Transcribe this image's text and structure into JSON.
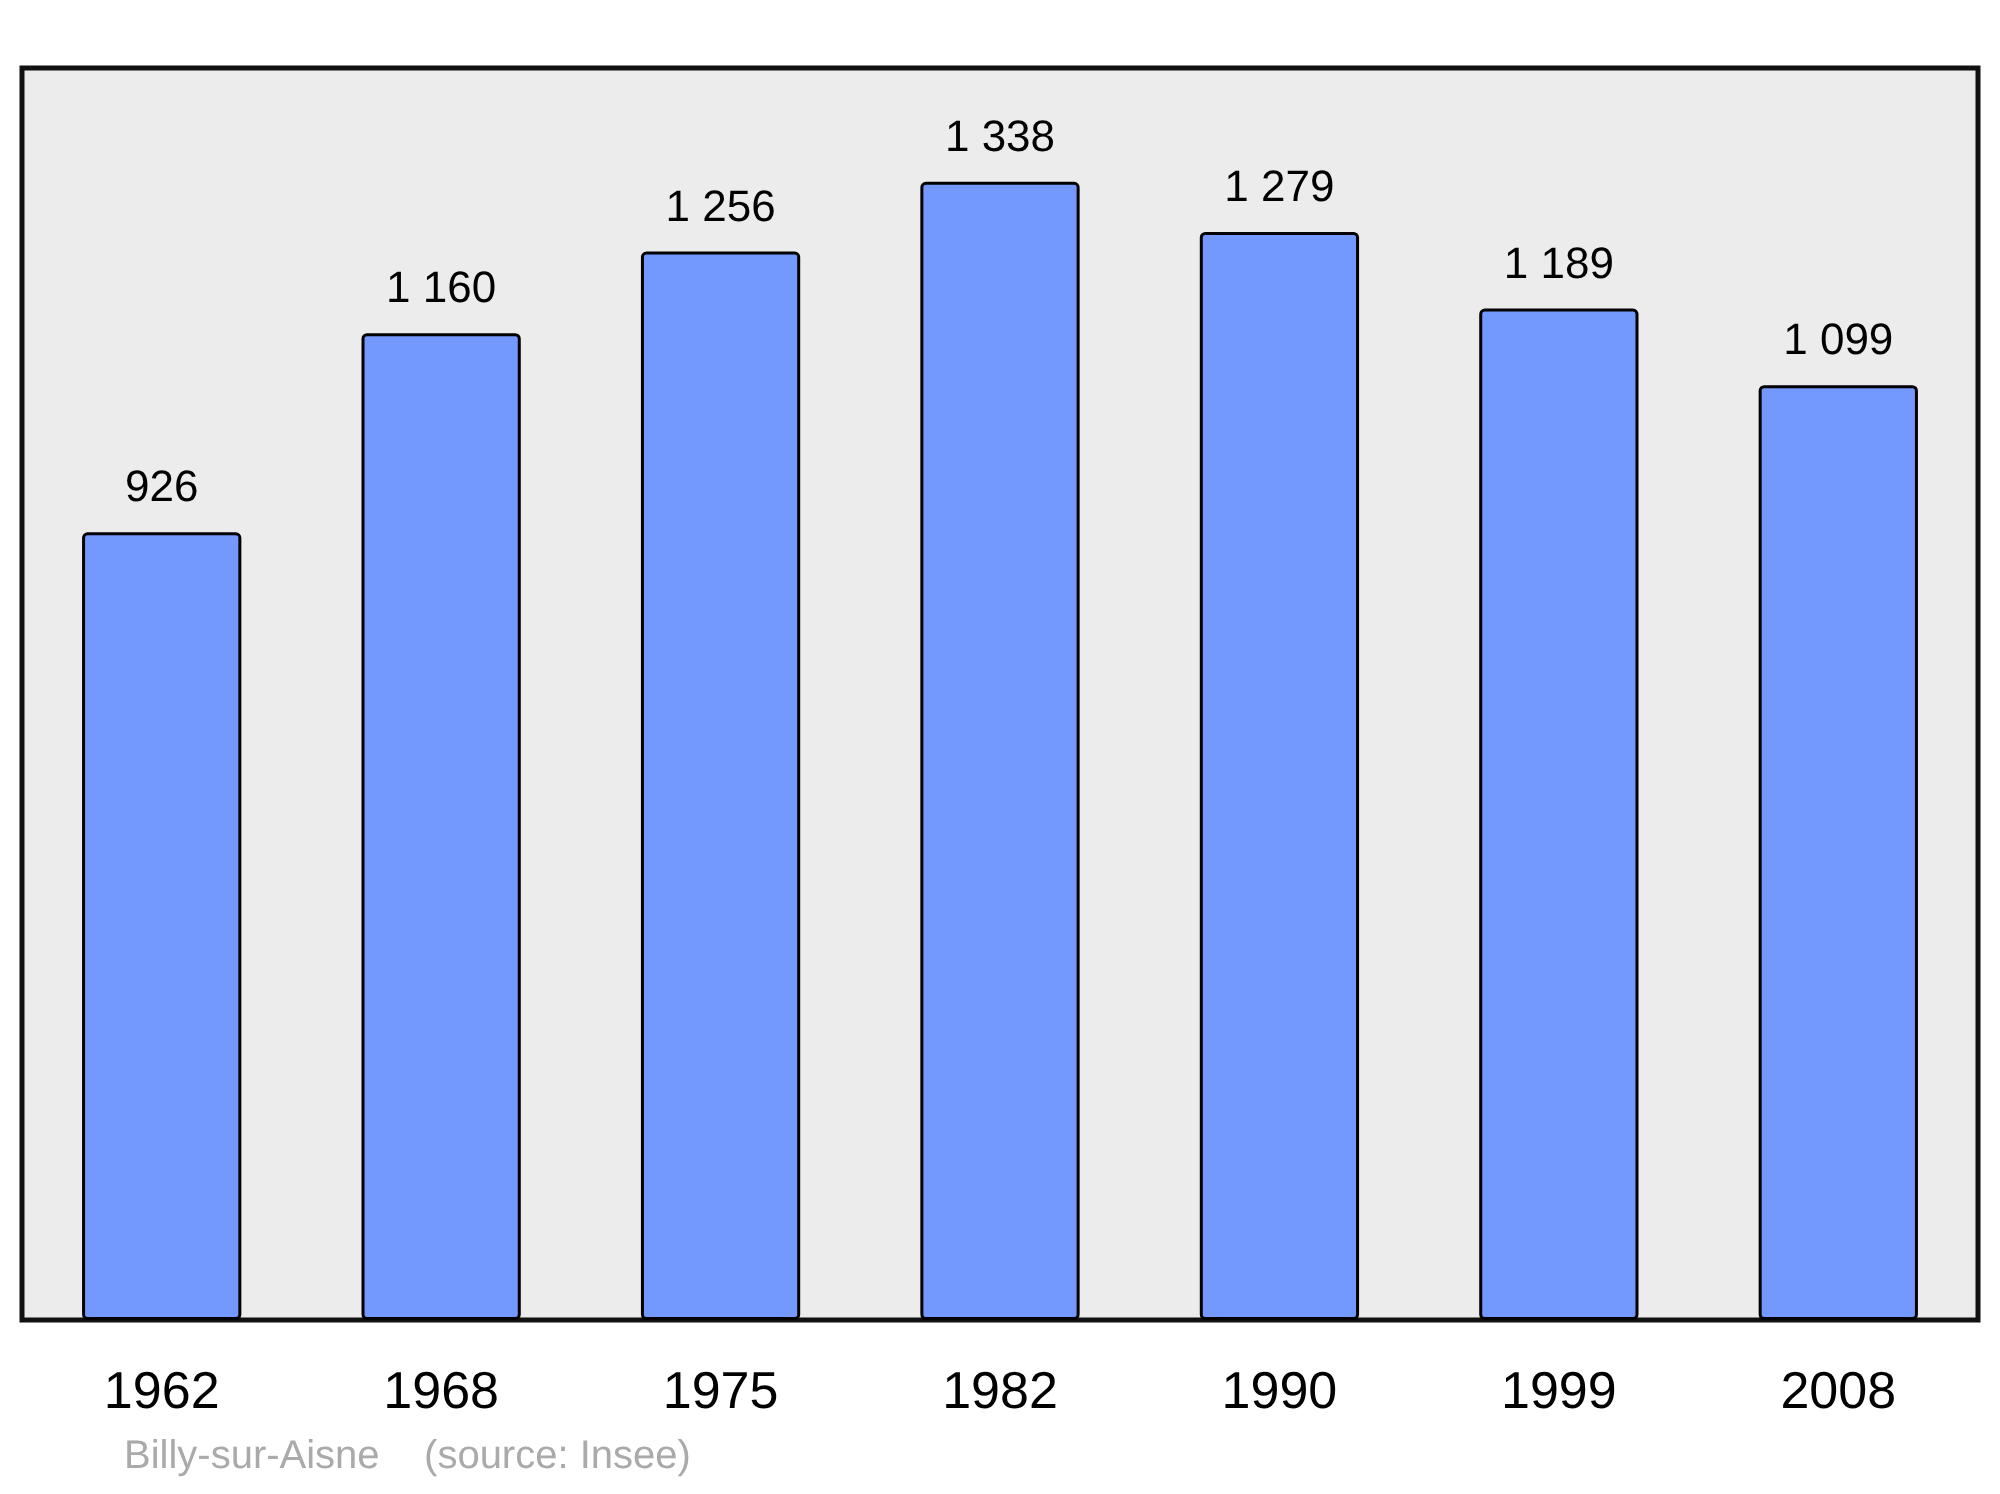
{
  "chart_data": {
    "type": "bar",
    "categories": [
      "1962",
      "1968",
      "1975",
      "1982",
      "1990",
      "1999",
      "2008"
    ],
    "values": [
      926,
      1160,
      1256,
      1338,
      1279,
      1189,
      1099
    ],
    "value_labels": [
      "926",
      "1 160",
      "1 256",
      "1 338",
      "1 279",
      "1 189",
      "1 099"
    ],
    "color": "#7399ff",
    "annotations": [
      "Billy-sur-Aisne    (source: Insee)"
    ]
  }
}
